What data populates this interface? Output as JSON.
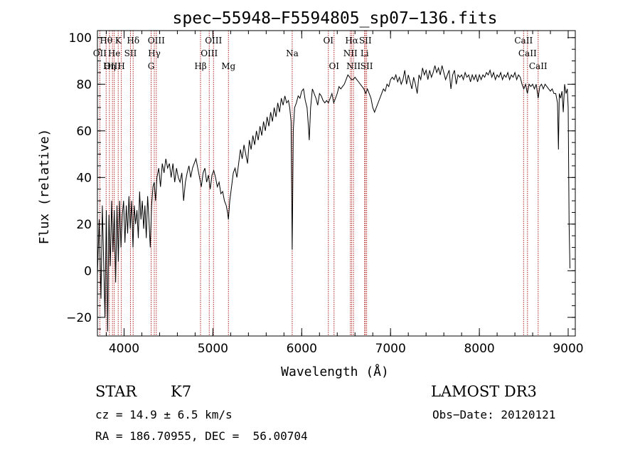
{
  "chart_data": {
    "type": "line",
    "title": "spec−55948−F5594805_sp07−136.fits",
    "xlabel": "Wavelength (Å)",
    "ylabel": "Flux (relative)",
    "xlim": [
      3700,
      9080
    ],
    "ylim": [
      -28,
      103
    ],
    "x_ticks": [
      4000,
      5000,
      6000,
      7000,
      8000,
      9000
    ],
    "y_ticks": [
      -20,
      0,
      20,
      40,
      60,
      80,
      100
    ],
    "x_minor_step": 200,
    "y_minor_step": 5,
    "grid": false,
    "colors": {
      "spectrum": "#000000",
      "lines": "#b22222",
      "axes": "#000000"
    },
    "spectral_lines": [
      {
        "label": "Hθ",
        "x": 3798,
        "row": 0
      },
      {
        "label": "OII",
        "x": 3727,
        "row": 1
      },
      {
        "label": "OIII",
        "x": 3869,
        "row": 2
      },
      {
        "label": "K",
        "x": 3934,
        "row": 0
      },
      {
        "label": "He",
        "x": 3889,
        "row": 1
      },
      {
        "label": "Hη",
        "x": 3835,
        "row": 2
      },
      {
        "label": "Hδ",
        "x": 4102,
        "row": 0
      },
      {
        "label": "SII",
        "x": 4072,
        "row": 1
      },
      {
        "label": "H",
        "x": 3969,
        "row": 2
      },
      {
        "label": "OIII",
        "x": 4363,
        "row": 0
      },
      {
        "label": "Hγ",
        "x": 4340,
        "row": 1
      },
      {
        "label": "G",
        "x": 4305,
        "row": 2
      },
      {
        "label": "OIII",
        "x": 5007,
        "row": 0
      },
      {
        "label": "OIII",
        "x": 4959,
        "row": 1
      },
      {
        "label": "Hβ",
        "x": 4861,
        "row": 2
      },
      {
        "label": "Mg",
        "x": 5175,
        "row": 2
      },
      {
        "label": "Na",
        "x": 5893,
        "row": 1
      },
      {
        "label": "OI",
        "x": 6300,
        "row": 0
      },
      {
        "label": "OI",
        "x": 6364,
        "row": 2
      },
      {
        "label": "Hα",
        "x": 6563,
        "row": 0
      },
      {
        "label": "SII",
        "x": 6716,
        "row": 0
      },
      {
        "label": "NII",
        "x": 6548,
        "row": 1
      },
      {
        "label": "Li",
        "x": 6708,
        "row": 1
      },
      {
        "label": "NII",
        "x": 6583,
        "row": 2
      },
      {
        "label": "SII",
        "x": 6731,
        "row": 2
      },
      {
        "label": "CaII",
        "x": 8498,
        "row": 0
      },
      {
        "label": "CaII",
        "x": 8542,
        "row": 1
      },
      {
        "label": "CaII",
        "x": 8662,
        "row": 2
      }
    ],
    "series": [
      {
        "name": "spectrum",
        "points": [
          [
            3700,
            -2
          ],
          [
            3720,
            22
          ],
          [
            3740,
            -12
          ],
          [
            3755,
            28
          ],
          [
            3770,
            5
          ],
          [
            3785,
            -20
          ],
          [
            3800,
            26
          ],
          [
            3815,
            -26
          ],
          [
            3830,
            24
          ],
          [
            3845,
            2
          ],
          [
            3860,
            30
          ],
          [
            3875,
            8
          ],
          [
            3890,
            26
          ],
          [
            3905,
            -5
          ],
          [
            3920,
            28
          ],
          [
            3935,
            4
          ],
          [
            3950,
            30
          ],
          [
            3965,
            10
          ],
          [
            3980,
            24
          ],
          [
            3995,
            30
          ],
          [
            4010,
            12
          ],
          [
            4025,
            28
          ],
          [
            4040,
            16
          ],
          [
            4055,
            32
          ],
          [
            4070,
            18
          ],
          [
            4085,
            30
          ],
          [
            4100,
            10
          ],
          [
            4115,
            28
          ],
          [
            4130,
            20
          ],
          [
            4145,
            26
          ],
          [
            4160,
            14
          ],
          [
            4175,
            34
          ],
          [
            4190,
            22
          ],
          [
            4205,
            30
          ],
          [
            4220,
            18
          ],
          [
            4235,
            28
          ],
          [
            4250,
            14
          ],
          [
            4265,
            32
          ],
          [
            4280,
            22
          ],
          [
            4295,
            10
          ],
          [
            4310,
            28
          ],
          [
            4325,
            36
          ],
          [
            4340,
            38
          ],
          [
            4355,
            30
          ],
          [
            4370,
            40
          ],
          [
            4390,
            44
          ],
          [
            4410,
            36
          ],
          [
            4430,
            46
          ],
          [
            4450,
            42
          ],
          [
            4470,
            48
          ],
          [
            4490,
            44
          ],
          [
            4510,
            46
          ],
          [
            4530,
            40
          ],
          [
            4550,
            46
          ],
          [
            4570,
            38
          ],
          [
            4590,
            44
          ],
          [
            4610,
            40
          ],
          [
            4630,
            38
          ],
          [
            4650,
            42
          ],
          [
            4670,
            30
          ],
          [
            4690,
            38
          ],
          [
            4710,
            42
          ],
          [
            4730,
            45
          ],
          [
            4750,
            40
          ],
          [
            4770,
            44
          ],
          [
            4790,
            46
          ],
          [
            4810,
            48
          ],
          [
            4830,
            44
          ],
          [
            4850,
            40
          ],
          [
            4870,
            36
          ],
          [
            4890,
            42
          ],
          [
            4910,
            44
          ],
          [
            4930,
            38
          ],
          [
            4950,
            41
          ],
          [
            4970,
            35
          ],
          [
            4990,
            41
          ],
          [
            5010,
            43
          ],
          [
            5030,
            40
          ],
          [
            5050,
            36
          ],
          [
            5070,
            38
          ],
          [
            5090,
            33
          ],
          [
            5110,
            34
          ],
          [
            5130,
            30
          ],
          [
            5150,
            28
          ],
          [
            5165,
            25
          ],
          [
            5175,
            22
          ],
          [
            5190,
            30
          ],
          [
            5210,
            36
          ],
          [
            5230,
            42
          ],
          [
            5250,
            44
          ],
          [
            5270,
            40
          ],
          [
            5290,
            46
          ],
          [
            5310,
            52
          ],
          [
            5330,
            48
          ],
          [
            5350,
            54
          ],
          [
            5370,
            50
          ],
          [
            5390,
            46
          ],
          [
            5410,
            56
          ],
          [
            5430,
            52
          ],
          [
            5450,
            58
          ],
          [
            5470,
            54
          ],
          [
            5490,
            60
          ],
          [
            5510,
            56
          ],
          [
            5530,
            62
          ],
          [
            5550,
            58
          ],
          [
            5570,
            64
          ],
          [
            5590,
            60
          ],
          [
            5610,
            66
          ],
          [
            5630,
            62
          ],
          [
            5650,
            68
          ],
          [
            5670,
            64
          ],
          [
            5690,
            70
          ],
          [
            5710,
            66
          ],
          [
            5730,
            72
          ],
          [
            5750,
            68
          ],
          [
            5770,
            74
          ],
          [
            5790,
            71
          ],
          [
            5810,
            75
          ],
          [
            5830,
            72
          ],
          [
            5850,
            73
          ],
          [
            5865,
            70
          ],
          [
            5880,
            64
          ],
          [
            5888,
            30
          ],
          [
            5893,
            9
          ],
          [
            5898,
            28
          ],
          [
            5905,
            60
          ],
          [
            5920,
            70
          ],
          [
            5940,
            72
          ],
          [
            5960,
            75
          ],
          [
            5980,
            74
          ],
          [
            6000,
            77
          ],
          [
            6020,
            78
          ],
          [
            6040,
            73
          ],
          [
            6060,
            70
          ],
          [
            6075,
            62
          ],
          [
            6085,
            56
          ],
          [
            6100,
            70
          ],
          [
            6120,
            78
          ],
          [
            6140,
            76
          ],
          [
            6160,
            74
          ],
          [
            6180,
            71
          ],
          [
            6200,
            76
          ],
          [
            6220,
            75
          ],
          [
            6240,
            73
          ],
          [
            6260,
            72
          ],
          [
            6280,
            73
          ],
          [
            6300,
            72
          ],
          [
            6320,
            74
          ],
          [
            6340,
            76
          ],
          [
            6360,
            72
          ],
          [
            6380,
            74
          ],
          [
            6400,
            76
          ],
          [
            6420,
            79
          ],
          [
            6440,
            78
          ],
          [
            6460,
            79
          ],
          [
            6480,
            80
          ],
          [
            6500,
            82
          ],
          [
            6520,
            84
          ],
          [
            6540,
            83
          ],
          [
            6560,
            82
          ],
          [
            6580,
            82
          ],
          [
            6600,
            83
          ],
          [
            6620,
            82
          ],
          [
            6640,
            81
          ],
          [
            6660,
            80
          ],
          [
            6680,
            79
          ],
          [
            6700,
            78
          ],
          [
            6720,
            76
          ],
          [
            6740,
            78
          ],
          [
            6760,
            76
          ],
          [
            6780,
            74
          ],
          [
            6800,
            70
          ],
          [
            6820,
            68
          ],
          [
            6840,
            70
          ],
          [
            6860,
            72
          ],
          [
            6880,
            74
          ],
          [
            6900,
            76
          ],
          [
            6920,
            78
          ],
          [
            6940,
            77
          ],
          [
            6960,
            80
          ],
          [
            6980,
            79
          ],
          [
            7000,
            82
          ],
          [
            7020,
            83
          ],
          [
            7040,
            82
          ],
          [
            7060,
            84
          ],
          [
            7080,
            81
          ],
          [
            7100,
            83
          ],
          [
            7120,
            80
          ],
          [
            7140,
            82
          ],
          [
            7160,
            86
          ],
          [
            7180,
            80
          ],
          [
            7200,
            84
          ],
          [
            7220,
            81
          ],
          [
            7240,
            78
          ],
          [
            7260,
            83
          ],
          [
            7280,
            80
          ],
          [
            7300,
            76
          ],
          [
            7320,
            84
          ],
          [
            7340,
            82
          ],
          [
            7360,
            87
          ],
          [
            7380,
            84
          ],
          [
            7400,
            86
          ],
          [
            7420,
            82
          ],
          [
            7440,
            86
          ],
          [
            7460,
            83
          ],
          [
            7480,
            85
          ],
          [
            7500,
            88
          ],
          [
            7520,
            85
          ],
          [
            7540,
            87
          ],
          [
            7560,
            84
          ],
          [
            7580,
            88
          ],
          [
            7600,
            85
          ],
          [
            7620,
            82
          ],
          [
            7640,
            84
          ],
          [
            7660,
            86
          ],
          [
            7680,
            78
          ],
          [
            7700,
            84
          ],
          [
            7720,
            86
          ],
          [
            7740,
            80
          ],
          [
            7760,
            84
          ],
          [
            7780,
            83
          ],
          [
            7800,
            84
          ],
          [
            7820,
            82
          ],
          [
            7840,
            85
          ],
          [
            7860,
            83
          ],
          [
            7880,
            84
          ],
          [
            7900,
            81
          ],
          [
            7920,
            84
          ],
          [
            7940,
            82
          ],
          [
            7960,
            84
          ],
          [
            7980,
            81
          ],
          [
            8000,
            84
          ],
          [
            8020,
            82
          ],
          [
            8040,
            84
          ],
          [
            8060,
            83
          ],
          [
            8080,
            85
          ],
          [
            8100,
            84
          ],
          [
            8120,
            86
          ],
          [
            8140,
            83
          ],
          [
            8160,
            85
          ],
          [
            8180,
            82
          ],
          [
            8200,
            84
          ],
          [
            8220,
            83
          ],
          [
            8240,
            85
          ],
          [
            8260,
            82
          ],
          [
            8280,
            84
          ],
          [
            8300,
            83
          ],
          [
            8320,
            85
          ],
          [
            8340,
            82
          ],
          [
            8360,
            84
          ],
          [
            8380,
            83
          ],
          [
            8400,
            85
          ],
          [
            8420,
            82
          ],
          [
            8440,
            84
          ],
          [
            8460,
            83
          ],
          [
            8480,
            80
          ],
          [
            8500,
            78
          ],
          [
            8520,
            80
          ],
          [
            8540,
            76
          ],
          [
            8560,
            80
          ],
          [
            8580,
            79
          ],
          [
            8600,
            80
          ],
          [
            8620,
            78
          ],
          [
            8640,
            80
          ],
          [
            8662,
            74
          ],
          [
            8680,
            79
          ],
          [
            8700,
            80
          ],
          [
            8720,
            78
          ],
          [
            8740,
            80
          ],
          [
            8760,
            79
          ],
          [
            8780,
            78
          ],
          [
            8800,
            77
          ],
          [
            8820,
            78
          ],
          [
            8840,
            76
          ],
          [
            8860,
            76
          ],
          [
            8880,
            72
          ],
          [
            8890,
            52
          ],
          [
            8900,
            76
          ],
          [
            8915,
            74
          ],
          [
            8930,
            77
          ],
          [
            8945,
            68
          ],
          [
            8960,
            80
          ],
          [
            8975,
            76
          ],
          [
            8990,
            78
          ],
          [
            9000,
            70
          ],
          [
            9010,
            20
          ],
          [
            9020,
            1
          ]
        ]
      }
    ]
  },
  "info": {
    "object_class": "STAR",
    "subclass": "K7",
    "survey": "LAMOST DR3",
    "redshift": "cz = 14.9 ± 6.5 km/s",
    "obs_date": "Obs−Date: 20120121",
    "coords": "RA = 186.70955, DEC =  56.00704"
  }
}
